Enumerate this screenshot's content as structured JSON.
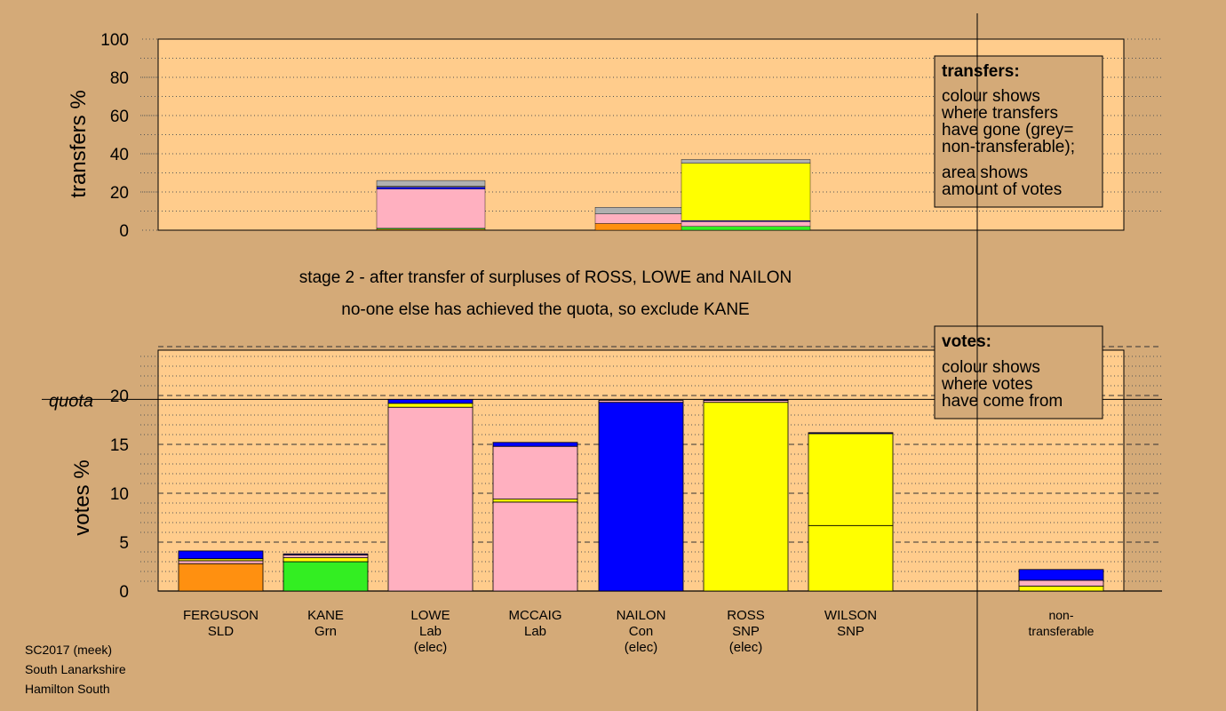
{
  "colors": {
    "background": "#d4aa78",
    "plot_bg": "#ffcc8c",
    "SLD": "#ff9010",
    "Grn": "#33ee22",
    "Lab": "#ffb0c0",
    "Con": "#0000ff",
    "SNP": "#ffff00",
    "nontransferable": "#b0b0b0"
  },
  "stage_text": {
    "line1": "stage 2 - after transfer of surpluses of ROSS, LOWE and NAILON",
    "line2": "no-one else has achieved the quota, so exclude KANE"
  },
  "footer": {
    "line1": "SC2017 (meek)",
    "line2": "South Lanarkshire",
    "line3": "Hamilton South"
  },
  "legend_transfers": {
    "title": "transfers:",
    "lines1": [
      "colour shows",
      "where transfers",
      "have gone (grey=",
      "non-transferable);"
    ],
    "lines2": [
      "area shows",
      "amount of votes"
    ]
  },
  "legend_votes": {
    "title": "votes:",
    "lines": [
      "colour shows",
      "where votes",
      "have come from"
    ]
  },
  "chart_data": [
    {
      "type": "bar",
      "stacked": true,
      "ylabel": "transfers %",
      "ylim": [
        0,
        100
      ],
      "yticks": [
        0,
        20,
        40,
        60,
        80,
        100
      ],
      "transfer_blocks": [
        {
          "from": "LOWE",
          "segments": [
            {
              "party": "SLD",
              "value": 0.5
            },
            {
              "party": "Grn",
              "value": 0.5
            },
            {
              "party": "Lab",
              "value": 20.5
            },
            {
              "party": "Con",
              "value": 1.0
            },
            {
              "party": "nontransferable",
              "value": 0.5
            },
            {
              "party": "nontransferable",
              "value": 3.0
            }
          ]
        },
        {
          "from": "NAILON",
          "segments": [
            {
              "party": "SLD",
              "value": 3.5
            },
            {
              "party": "Lab",
              "value": 5.0
            },
            {
              "party": "nontransferable",
              "value": 3.5
            }
          ]
        },
        {
          "from": "ROSS",
          "segments": [
            {
              "party": "Grn",
              "value": 2.0
            },
            {
              "party": "Lab",
              "value": 2.5
            },
            {
              "party": "Con",
              "value": 0.5
            },
            {
              "party": "SNP",
              "value": 30.0
            },
            {
              "party": "nontransferable",
              "value": 2.0
            }
          ]
        }
      ]
    },
    {
      "type": "bar",
      "stacked": true,
      "ylabel": "votes %",
      "ylim": [
        0,
        25
      ],
      "yticks": [
        0,
        5,
        10,
        15,
        20
      ],
      "quota": 19.6,
      "quota_label": "quota",
      "candidates": [
        {
          "name": "FERGUSON",
          "party": "SLD",
          "elected": "",
          "segments": [
            {
              "party": "SLD",
              "value": 2.8
            },
            {
              "party": "Lab",
              "value": 0.3
            },
            {
              "party": "SNP",
              "value": 0.2
            },
            {
              "party": "Con",
              "value": 0.8
            }
          ]
        },
        {
          "name": "KANE",
          "party": "Grn",
          "elected": "",
          "segments": [
            {
              "party": "Grn",
              "value": 3.0
            },
            {
              "party": "SNP",
              "value": 0.4
            },
            {
              "party": "Lab",
              "value": 0.3
            },
            {
              "party": "Con",
              "value": 0.1
            }
          ]
        },
        {
          "name": "LOWE",
          "party": "Lab",
          "elected": "(elec)",
          "segments": [
            {
              "party": "Lab",
              "value": 18.8
            },
            {
              "party": "SNP",
              "value": 0.4
            },
            {
              "party": "Con",
              "value": 0.4
            }
          ]
        },
        {
          "name": "MCCAIG",
          "party": "Lab",
          "elected": "",
          "segments": [
            {
              "party": "Lab",
              "value": 9.1
            },
            {
              "party": "SNP",
              "value": 0.3
            },
            {
              "party": "Lab",
              "value": 5.4
            },
            {
              "party": "Con",
              "value": 0.4
            }
          ]
        },
        {
          "name": "NAILON",
          "party": "Con",
          "elected": "(elec)",
          "segments": [
            {
              "party": "Con",
              "value": 19.3
            },
            {
              "party": "Lab",
              "value": 0.2
            }
          ]
        },
        {
          "name": "ROSS",
          "party": "SNP",
          "elected": "(elec)",
          "segments": [
            {
              "party": "SNP",
              "value": 19.3
            },
            {
              "party": "Lab",
              "value": 0.2
            },
            {
              "party": "Con",
              "value": 0.1
            }
          ]
        },
        {
          "name": "WILSON",
          "party": "SNP",
          "elected": "",
          "segments": [
            {
              "party": "SNP",
              "value": 6.7
            },
            {
              "party": "SNP",
              "value": 9.4
            },
            {
              "party": "Con",
              "value": 0.1
            }
          ]
        },
        {
          "name": "non-",
          "party": "transferable",
          "elected": "",
          "nontransferable": true,
          "segments": [
            {
              "party": "SNP",
              "value": 0.5
            },
            {
              "party": "Lab",
              "value": 0.6
            },
            {
              "party": "Con",
              "value": 1.1
            }
          ]
        }
      ]
    }
  ]
}
